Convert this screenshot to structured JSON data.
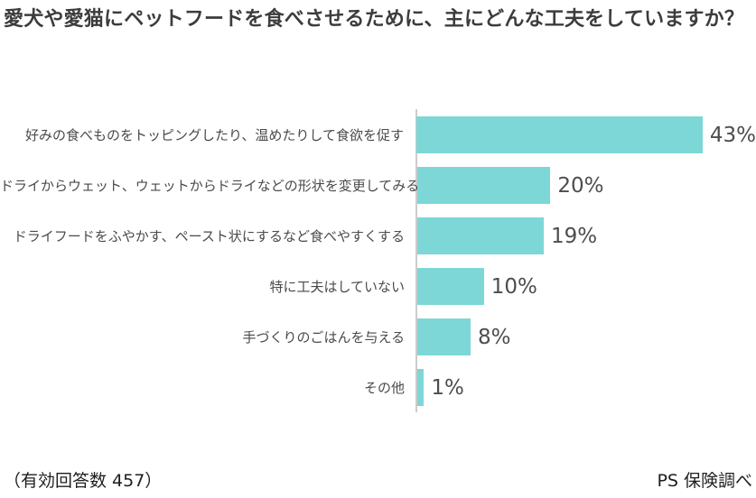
{
  "title": "愛犬や愛猫にペットフードを食べさせるために、主にどんな工夫をしていますか？",
  "chart_data": {
    "type": "bar",
    "orientation": "horizontal",
    "title": "愛犬や愛猫にペットフードを食べさせるために、主にどんな工夫をしていますか？",
    "categories": [
      "好みの食べものをトッピングしたり、温めたりして食欲を促す",
      "ドライからウェット、ウェットからドライなどの形状を変更してみる",
      "ドライフードをふやかす、ペースト状にするなど食べやすくする",
      "特に工夫はしていない",
      "手づくりのごはんを与える",
      "その他"
    ],
    "values": [
      43,
      20,
      19,
      10,
      8,
      1
    ],
    "value_labels": [
      "43%",
      "20%",
      "19%",
      "10%",
      "8%",
      "1%"
    ],
    "unit": "%",
    "xlim": [
      0,
      45
    ],
    "grid": false,
    "legend": false,
    "bar_color": "#7dd7d7",
    "axis_color": "#cccccc"
  },
  "footer": {
    "sample_size": "（有効回答数 457）",
    "source": "PS 保険調べ"
  }
}
